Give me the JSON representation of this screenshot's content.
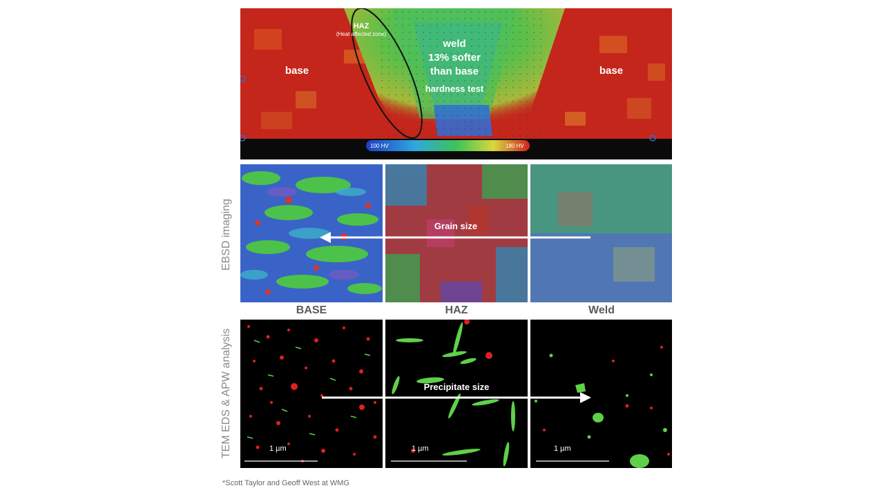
{
  "hardness_map": {
    "haz_label": "HAZ",
    "haz_sublabel": "(Heat affected zone)",
    "weld_line1": "weld",
    "weld_line2": "13% softer",
    "weld_line3": "than base",
    "hardness_test": "hardness test",
    "base_left": "base",
    "base_right": "base",
    "scale_min": "100 HV",
    "scale_max": "180 HV"
  },
  "rows": {
    "ebsd_label": "EBSD imaging",
    "tem_label": "TEM EDS & APW analysis"
  },
  "ebsd": {
    "arrow_label": "Grain size"
  },
  "columns": [
    "BASE",
    "HAZ",
    "Weld"
  ],
  "tem": {
    "arrow_label": "Precipitate size",
    "scale_base": "1 µm",
    "scale_haz": "1 µm",
    "scale_weld": "1 µm"
  },
  "footnote": "*Scott Taylor and Geoff West at WMG",
  "colors": {
    "base_red": "#c4261c",
    "weld_green": "#4caf50",
    "weld_blue": "#2f6fd8",
    "precipitate_red": "#e0201e",
    "precipitate_green": "#5fd04a"
  }
}
